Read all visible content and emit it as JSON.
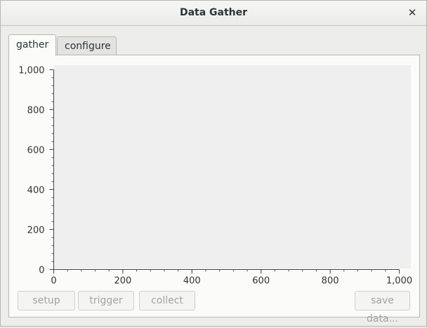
{
  "window": {
    "title": "Data Gather"
  },
  "tabs": [
    {
      "label": "gather",
      "active": true
    },
    {
      "label": "configure",
      "active": false
    }
  ],
  "chart_data": {
    "type": "line",
    "series": [],
    "xlim": [
      0,
      1000
    ],
    "ylim": [
      0,
      1000
    ],
    "x_ticks": [
      "0",
      "200",
      "400",
      "600",
      "800",
      "1,000"
    ],
    "y_ticks": [
      "0",
      "200",
      "400",
      "600",
      "800",
      "1,000"
    ]
  },
  "buttons": {
    "setup": "setup",
    "trigger": "trigger",
    "collect": "collect",
    "save": "save data..."
  }
}
